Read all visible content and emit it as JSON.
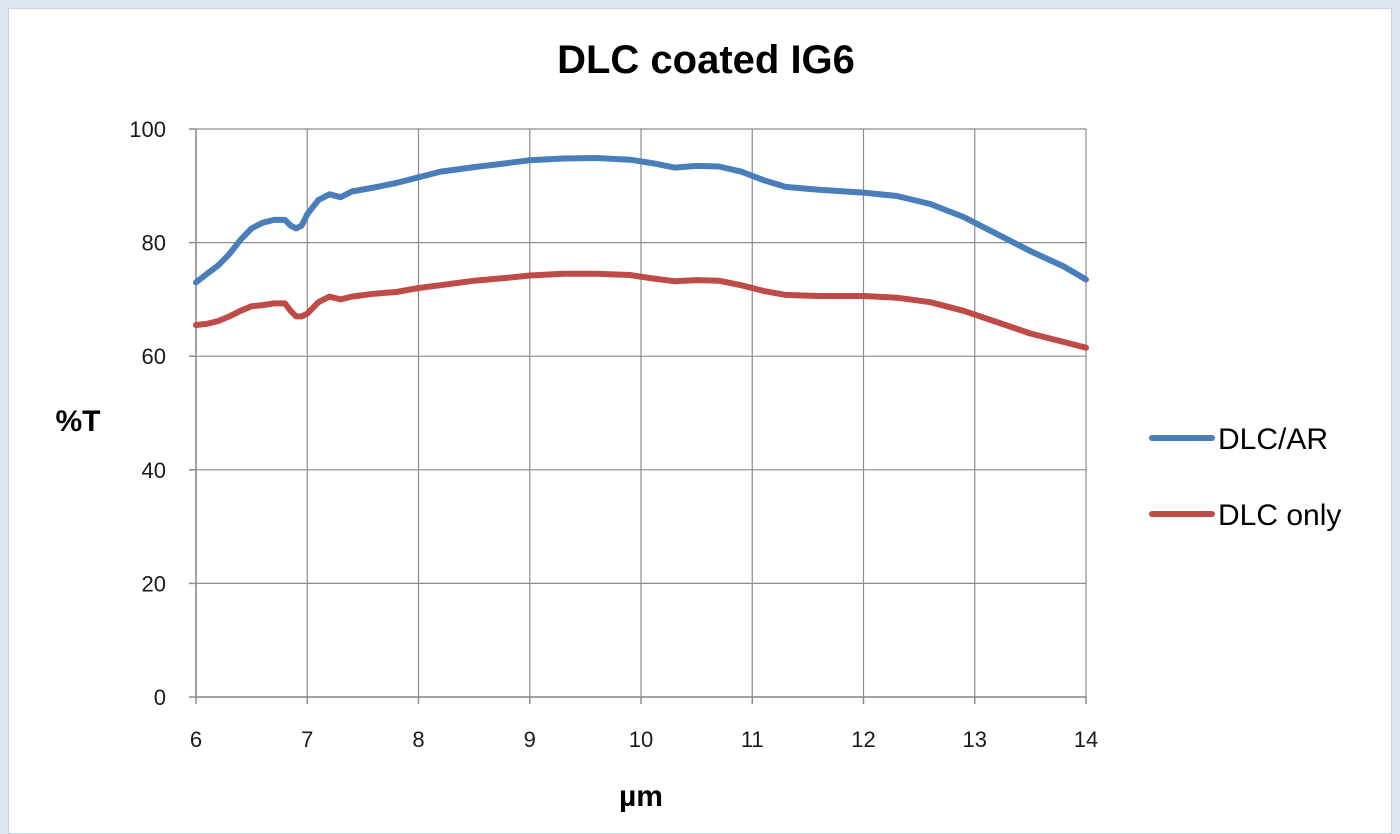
{
  "chart_data": {
    "type": "line",
    "title": "DLC coated  IG6",
    "xlabel": "µm",
    "ylabel": "%T",
    "xlim": [
      6,
      14
    ],
    "ylim": [
      0,
      100
    ],
    "x_ticks": [
      6,
      7,
      8,
      9,
      10,
      11,
      12,
      13,
      14
    ],
    "y_ticks": [
      0,
      20,
      40,
      60,
      80,
      100
    ],
    "grid": true,
    "legend_position": "right",
    "series": [
      {
        "name": "DLC/AR",
        "color": "#4a7ebb",
        "x": [
          6.0,
          6.1,
          6.2,
          6.3,
          6.4,
          6.5,
          6.6,
          6.7,
          6.8,
          6.85,
          6.9,
          6.95,
          7.0,
          7.1,
          7.2,
          7.3,
          7.4,
          7.6,
          7.8,
          8.0,
          8.2,
          8.5,
          8.8,
          9.0,
          9.3,
          9.6,
          9.9,
          10.1,
          10.3,
          10.5,
          10.7,
          10.9,
          11.1,
          11.3,
          11.6,
          12.0,
          12.3,
          12.6,
          12.9,
          13.2,
          13.5,
          13.8,
          14.0
        ],
        "y": [
          73,
          74.5,
          76,
          78,
          80.5,
          82.5,
          83.5,
          84,
          84,
          83,
          82.5,
          83,
          85,
          87.5,
          88.5,
          88,
          89,
          89.7,
          90.5,
          91.5,
          92.5,
          93.3,
          94,
          94.5,
          94.8,
          94.9,
          94.6,
          94,
          93.2,
          93.5,
          93.4,
          92.5,
          91,
          89.8,
          89.3,
          88.8,
          88.2,
          86.8,
          84.5,
          81.5,
          78.5,
          75.8,
          73.5
        ]
      },
      {
        "name": "DLC only",
        "color": "#be4b48",
        "x": [
          6.0,
          6.1,
          6.2,
          6.3,
          6.4,
          6.5,
          6.6,
          6.7,
          6.8,
          6.85,
          6.9,
          6.95,
          7.0,
          7.1,
          7.2,
          7.3,
          7.4,
          7.6,
          7.8,
          8.0,
          8.2,
          8.5,
          8.8,
          9.0,
          9.3,
          9.6,
          9.9,
          10.1,
          10.3,
          10.5,
          10.7,
          10.9,
          11.1,
          11.3,
          11.6,
          12.0,
          12.3,
          12.6,
          12.9,
          13.2,
          13.5,
          13.8,
          14.0
        ],
        "y": [
          65.5,
          65.7,
          66.2,
          67,
          68,
          68.8,
          69,
          69.3,
          69.3,
          68,
          67,
          67,
          67.5,
          69.5,
          70.5,
          70,
          70.5,
          71,
          71.3,
          72,
          72.5,
          73.3,
          73.8,
          74.2,
          74.5,
          74.5,
          74.3,
          73.7,
          73.2,
          73.4,
          73.3,
          72.5,
          71.5,
          70.8,
          70.6,
          70.6,
          70.3,
          69.5,
          68,
          66,
          64,
          62.5,
          61.5
        ]
      }
    ]
  }
}
